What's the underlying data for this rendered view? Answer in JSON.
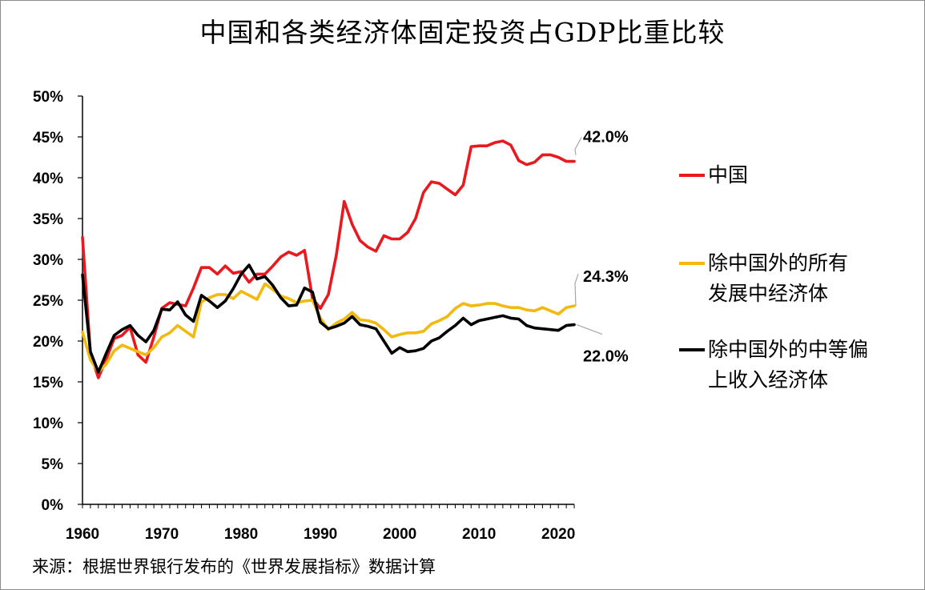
{
  "title": "中国和各类经济体固定投资占GDP比重比较",
  "source": "来源：根据世界银行发布的《世界发展指标》数据计算",
  "chart_data": {
    "type": "line",
    "title": "中国和各类经济体固定投资占GDP比重比较",
    "xlabel": "",
    "ylabel": "",
    "ylim": [
      0,
      0.5
    ],
    "xlim": [
      1960,
      2022
    ],
    "y_ticks": [
      "0%",
      "5%",
      "10%",
      "15%",
      "20%",
      "25%",
      "30%",
      "35%",
      "40%",
      "45%",
      "50%"
    ],
    "x_ticks": [
      "1960",
      "1970",
      "1980",
      "1990",
      "2000",
      "2010",
      "2020"
    ],
    "grid": false,
    "legend_placement": "right",
    "x": [
      1960,
      1961,
      1962,
      1963,
      1964,
      1965,
      1966,
      1967,
      1968,
      1969,
      1970,
      1971,
      1972,
      1973,
      1974,
      1975,
      1976,
      1977,
      1978,
      1979,
      1980,
      1981,
      1982,
      1983,
      1984,
      1985,
      1986,
      1987,
      1988,
      1989,
      1990,
      1991,
      1992,
      1993,
      1994,
      1995,
      1996,
      1997,
      1998,
      1999,
      2000,
      2001,
      2002,
      2003,
      2004,
      2005,
      2006,
      2007,
      2008,
      2009,
      2010,
      2011,
      2012,
      2013,
      2014,
      2015,
      2016,
      2017,
      2018,
      2019,
      2020,
      2021,
      2022
    ],
    "series": [
      {
        "name": "中国",
        "color": "#e8191f",
        "end_label": "42.0%",
        "values": [
          0.327,
          0.185,
          0.155,
          0.178,
          0.203,
          0.207,
          0.217,
          0.183,
          0.174,
          0.205,
          0.24,
          0.247,
          0.245,
          0.243,
          0.265,
          0.29,
          0.29,
          0.282,
          0.292,
          0.283,
          0.285,
          0.272,
          0.282,
          0.282,
          0.292,
          0.303,
          0.309,
          0.305,
          0.311,
          0.252,
          0.24,
          0.257,
          0.305,
          0.371,
          0.343,
          0.323,
          0.315,
          0.31,
          0.329,
          0.325,
          0.325,
          0.333,
          0.35,
          0.382,
          0.395,
          0.393,
          0.386,
          0.379,
          0.391,
          0.438,
          0.439,
          0.439,
          0.443,
          0.445,
          0.44,
          0.421,
          0.416,
          0.419,
          0.428,
          0.428,
          0.425,
          0.42,
          0.42
        ]
      },
      {
        "name": "除中国外的所有发展中经济体",
        "color": "#f2b90f",
        "end_label": "24.3%",
        "values": [
          0.211,
          0.177,
          0.162,
          0.172,
          0.188,
          0.195,
          0.191,
          0.187,
          0.183,
          0.192,
          0.205,
          0.21,
          0.219,
          0.212,
          0.205,
          0.248,
          0.253,
          0.257,
          0.257,
          0.252,
          0.261,
          0.256,
          0.251,
          0.27,
          0.263,
          0.255,
          0.252,
          0.247,
          0.249,
          0.25,
          0.228,
          0.214,
          0.222,
          0.227,
          0.235,
          0.226,
          0.225,
          0.222,
          0.214,
          0.205,
          0.208,
          0.21,
          0.21,
          0.212,
          0.221,
          0.225,
          0.23,
          0.24,
          0.246,
          0.243,
          0.244,
          0.246,
          0.246,
          0.243,
          0.241,
          0.241,
          0.238,
          0.237,
          0.241,
          0.237,
          0.233,
          0.241,
          0.243
        ]
      },
      {
        "name": "除中国外的中等偏上收入经济体",
        "color": "#000000",
        "end_label": "22.0%",
        "values": [
          0.281,
          0.187,
          0.162,
          0.185,
          0.207,
          0.214,
          0.219,
          0.207,
          0.199,
          0.213,
          0.239,
          0.238,
          0.248,
          0.232,
          0.224,
          0.256,
          0.249,
          0.241,
          0.249,
          0.264,
          0.282,
          0.293,
          0.276,
          0.279,
          0.268,
          0.253,
          0.243,
          0.244,
          0.265,
          0.26,
          0.223,
          0.215,
          0.218,
          0.222,
          0.23,
          0.22,
          0.218,
          0.215,
          0.2,
          0.185,
          0.192,
          0.187,
          0.188,
          0.191,
          0.2,
          0.204,
          0.212,
          0.219,
          0.228,
          0.22,
          0.225,
          0.227,
          0.229,
          0.231,
          0.228,
          0.227,
          0.219,
          0.216,
          0.215,
          0.214,
          0.213,
          0.219,
          0.22
        ]
      }
    ]
  }
}
